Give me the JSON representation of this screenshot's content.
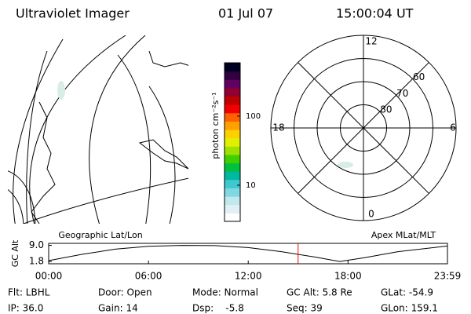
{
  "header": {
    "title": "Ultraviolet Imager",
    "date": "01 Jul 07",
    "time": "15:00:04 UT"
  },
  "map": {
    "label": "Geographic Lat/Lon"
  },
  "colorbar": {
    "label": "photon cm⁻²s⁻¹",
    "ylim": [
      3,
      590
    ],
    "yticks": [
      10,
      100
    ],
    "log": true,
    "colors": [
      "#ffffff",
      "#e0f0f4",
      "#c0e8ee",
      "#80d8e0",
      "#40c8d0",
      "#00b8a0",
      "#00c040",
      "#40d000",
      "#a0e000",
      "#e0f000",
      "#ffd000",
      "#ffa000",
      "#ff6000",
      "#f00000",
      "#c00000",
      "#900030",
      "#600060",
      "#300040",
      "#000020"
    ]
  },
  "polar": {
    "label": "Apex MLat/MLT",
    "rlim": [
      90,
      50
    ],
    "rticks": [
      80,
      70,
      60
    ],
    "mlt_ticks": [
      12,
      18,
      6,
      0
    ]
  },
  "chart_data": {
    "type": "line",
    "ylabel": "GC Alt",
    "x": [
      0,
      2,
      4,
      6,
      8,
      10,
      12,
      14,
      16,
      17.5,
      19,
      21,
      23.98
    ],
    "values": [
      2.2,
      5.0,
      7.3,
      8.6,
      9.0,
      8.9,
      8.0,
      6.2,
      3.8,
      1.8,
      3.5,
      6.2,
      8.7
    ],
    "color": "#000000",
    "marker_x": 15.0,
    "marker_color": "#ff0000",
    "xlim": [
      0,
      23.98
    ],
    "ylim": [
      0.8,
      9.9
    ],
    "xticks": [
      {
        "value": 0,
        "label": "00:00"
      },
      {
        "value": 6,
        "label": "06:00"
      },
      {
        "value": 12,
        "label": "12:00"
      },
      {
        "value": 18,
        "label": "18:00"
      },
      {
        "value": 23.98,
        "label": "23:59"
      }
    ],
    "yticks": [
      {
        "value": 9.0,
        "label": "9.0"
      },
      1.8
    ]
  },
  "status": [
    [
      "Flt: LBHL",
      "Door: Open",
      "Mode: Normal",
      "GC Alt: 5.8 Re",
      "GLat: -54.9"
    ],
    [
      "IP: 36.0",
      "Gain: 14",
      "Dsp:    -5.8",
      "Seq: 39",
      "GLon: 159.1"
    ]
  ]
}
